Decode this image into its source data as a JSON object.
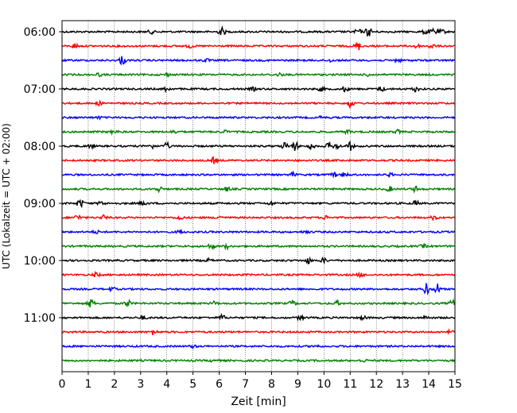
{
  "chart_data": {
    "type": "line",
    "subtype": "helicorder",
    "xlabel": "Zeit  [min]",
    "ylabel": "UTC (Lokalzeit = UTC + 02:00)",
    "xlim": [
      0,
      15
    ],
    "x_ticks": [
      "0",
      "1",
      "2",
      "3",
      "4",
      "5",
      "6",
      "7",
      "8",
      "9",
      "10",
      "11",
      "12",
      "13",
      "14",
      "15"
    ],
    "vertical_grid": "dotted",
    "y_tick_labels": [
      {
        "row": 0,
        "label": "06:00"
      },
      {
        "row": 4,
        "label": "07:00"
      },
      {
        "row": 8,
        "label": "08:00"
      },
      {
        "row": 12,
        "label": "09:00"
      },
      {
        "row": 16,
        "label": "10:00"
      },
      {
        "row": 20,
        "label": "11:00"
      }
    ],
    "row_colors": [
      "#000000",
      "#ff0000",
      "#0000ff",
      "#008000"
    ],
    "rows": [
      {
        "start": "06:00",
        "events": [
          [
            3.4,
            0.5
          ],
          [
            6.1,
            1.2
          ],
          [
            11.3,
            0.8
          ],
          [
            11.7,
            1.4
          ],
          [
            13.9,
            0.8
          ],
          [
            14.2,
            1.0
          ],
          [
            14.5,
            0.6
          ]
        ]
      },
      {
        "start": "06:15",
        "events": [
          [
            0.5,
            0.7
          ],
          [
            4.9,
            0.5
          ],
          [
            11.3,
            1.3
          ],
          [
            13.5,
            0.8
          ],
          [
            14.1,
            0.7
          ]
        ]
      },
      {
        "start": "06:30",
        "events": [
          [
            2.3,
            1.3
          ],
          [
            5.5,
            0.4
          ],
          [
            10.2,
            0.4
          ],
          [
            12.8,
            0.5
          ]
        ]
      },
      {
        "start": "06:45",
        "events": [
          [
            1.4,
            0.4
          ],
          [
            4.0,
            0.4
          ],
          [
            8.3,
            0.4
          ],
          [
            11.7,
            0.4
          ]
        ]
      },
      {
        "start": "07:00",
        "events": [
          [
            4.0,
            0.7
          ],
          [
            7.3,
            0.5
          ],
          [
            9.9,
            0.6
          ],
          [
            10.8,
            0.8
          ],
          [
            12.2,
            0.7
          ],
          [
            13.5,
            0.7
          ]
        ]
      },
      {
        "start": "07:15",
        "events": [
          [
            1.4,
            0.5
          ],
          [
            11.0,
            1.3
          ]
        ]
      },
      {
        "start": "07:30",
        "events": [
          [
            1.4,
            0.3
          ],
          [
            9.9,
            0.3
          ]
        ]
      },
      {
        "start": "07:45",
        "events": [
          [
            2.0,
            0.6
          ],
          [
            4.3,
            0.4
          ],
          [
            6.2,
            0.4
          ],
          [
            10.9,
            0.5
          ],
          [
            12.8,
            0.5
          ]
        ]
      },
      {
        "start": "08:00",
        "events": [
          [
            1.1,
            0.5
          ],
          [
            3.4,
            0.7
          ],
          [
            4.0,
            0.9
          ],
          [
            8.5,
            1.0
          ],
          [
            8.9,
            1.3
          ],
          [
            9.5,
            0.9
          ],
          [
            10.2,
            1.0
          ],
          [
            10.5,
            0.8
          ],
          [
            11.0,
            1.2
          ]
        ]
      },
      {
        "start": "08:15",
        "events": [
          [
            5.8,
            0.9
          ]
        ]
      },
      {
        "start": "08:30",
        "events": [
          [
            8.8,
            0.6
          ],
          [
            10.4,
            0.6
          ],
          [
            10.8,
            0.8
          ],
          [
            12.5,
            0.5
          ]
        ]
      },
      {
        "start": "08:45",
        "events": [
          [
            3.7,
            0.7
          ],
          [
            6.3,
            0.6
          ],
          [
            12.5,
            0.7
          ],
          [
            13.5,
            0.8
          ]
        ]
      },
      {
        "start": "09:00",
        "events": [
          [
            0.7,
            1.3
          ],
          [
            1.5,
            0.6
          ],
          [
            3.1,
            0.7
          ],
          [
            8.0,
            0.6
          ],
          [
            13.5,
            0.7
          ]
        ]
      },
      {
        "start": "09:15",
        "events": [
          [
            0.6,
            0.8
          ],
          [
            1.6,
            0.6
          ],
          [
            4.5,
            0.6
          ],
          [
            6.0,
            0.6
          ],
          [
            10.1,
            0.6
          ],
          [
            14.2,
            0.6
          ]
        ]
      },
      {
        "start": "09:30",
        "events": [
          [
            1.3,
            0.4
          ],
          [
            4.5,
            0.4
          ],
          [
            9.3,
            0.4
          ]
        ]
      },
      {
        "start": "09:45",
        "events": [
          [
            5.7,
            0.8
          ],
          [
            6.3,
            0.6
          ],
          [
            13.8,
            0.5
          ]
        ]
      },
      {
        "start": "10:00",
        "events": [
          [
            5.6,
            0.4
          ],
          [
            9.4,
            0.8
          ],
          [
            10.0,
            0.7
          ]
        ]
      },
      {
        "start": "10:15",
        "events": [
          [
            1.3,
            0.6
          ],
          [
            11.4,
            0.6
          ]
        ]
      },
      {
        "start": "10:30",
        "events": [
          [
            1.9,
            0.6
          ],
          [
            13.9,
            1.6
          ],
          [
            14.3,
            1.8
          ]
        ]
      },
      {
        "start": "10:45",
        "events": [
          [
            1.1,
            1.3
          ],
          [
            2.5,
            1.0
          ],
          [
            5.8,
            0.5
          ],
          [
            8.8,
            0.8
          ],
          [
            10.5,
            0.6
          ],
          [
            14.9,
            0.9
          ]
        ]
      },
      {
        "start": "11:00",
        "events": [
          [
            3.1,
            0.5
          ],
          [
            6.1,
            0.8
          ],
          [
            9.1,
            0.6
          ],
          [
            11.5,
            0.5
          ],
          [
            13.9,
            0.5
          ]
        ]
      },
      {
        "start": "11:15",
        "events": [
          [
            3.5,
            0.8
          ],
          [
            14.8,
            0.4
          ]
        ]
      },
      {
        "start": "11:30",
        "events": [
          [
            5.0,
            0.4
          ],
          [
            9.7,
            0.4
          ]
        ]
      },
      {
        "start": "11:45",
        "events": [
          [
            5.8,
            0.4
          ],
          [
            11.5,
            0.4
          ]
        ]
      }
    ]
  }
}
